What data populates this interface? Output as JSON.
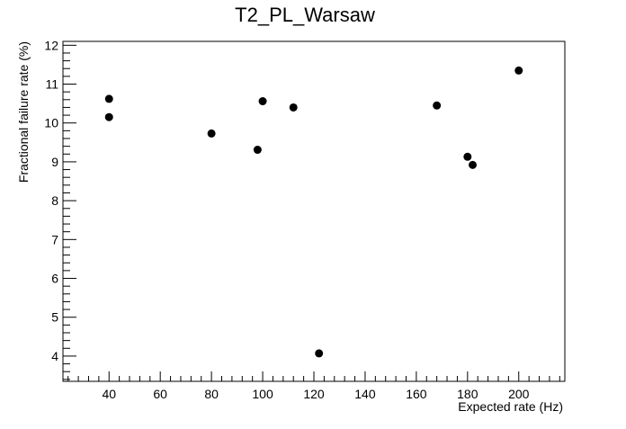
{
  "chart_data": {
    "type": "scatter",
    "title": "T2_PL_Warsaw",
    "xlabel": "Expected rate (Hz)",
    "ylabel": "Fractional failure rate (%)",
    "xlim": [
      22,
      218
    ],
    "ylim": [
      3.35,
      12.1
    ],
    "x_ticks": [
      40,
      60,
      80,
      100,
      120,
      140,
      160,
      180,
      200
    ],
    "y_ticks": [
      4,
      5,
      6,
      7,
      8,
      9,
      10,
      11,
      12
    ],
    "grid": false,
    "legend": "none",
    "marker_color": "#000000",
    "points": [
      {
        "x": 40,
        "y": 10.62
      },
      {
        "x": 40,
        "y": 10.15
      },
      {
        "x": 80,
        "y": 9.73
      },
      {
        "x": 98,
        "y": 9.31
      },
      {
        "x": 100,
        "y": 10.56
      },
      {
        "x": 112,
        "y": 10.4
      },
      {
        "x": 122,
        "y": 4.07
      },
      {
        "x": 168,
        "y": 10.45
      },
      {
        "x": 180,
        "y": 9.13
      },
      {
        "x": 182,
        "y": 8.92
      },
      {
        "x": 200,
        "y": 11.35
      }
    ]
  }
}
